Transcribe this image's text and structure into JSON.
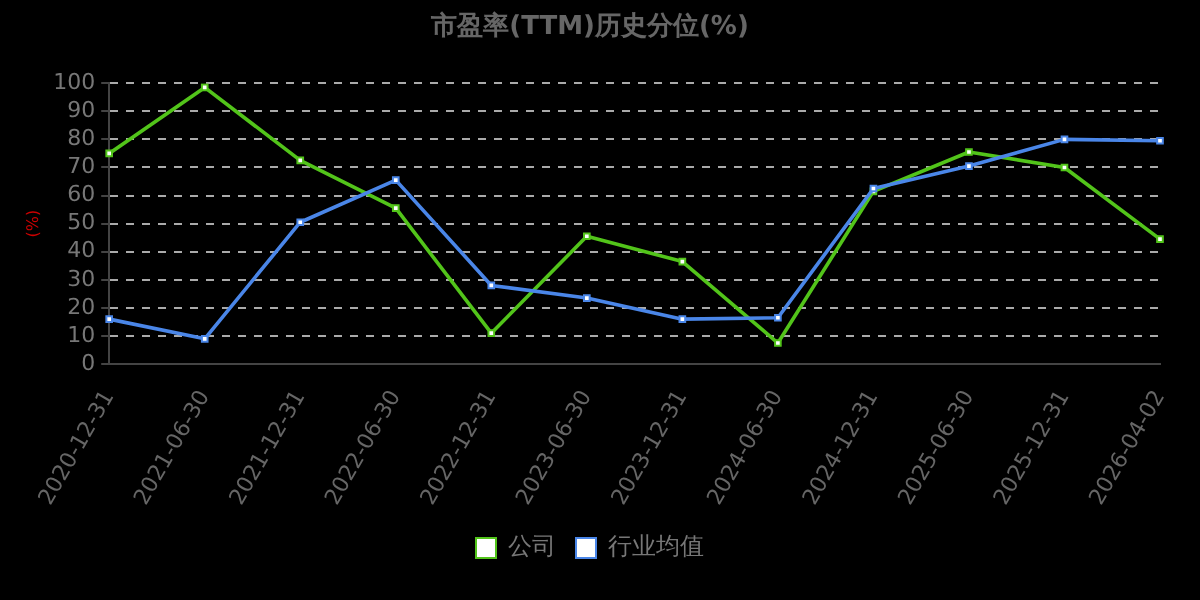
{
  "chart_data": {
    "type": "line",
    "title": "市盈率(TTM)历史分位(%)",
    "ylabel": "(%)",
    "categories": [
      "2020-12-31",
      "2021-06-30",
      "2021-12-31",
      "2022-06-30",
      "2022-12-31",
      "2023-06-30",
      "2023-12-31",
      "2024-06-30",
      "2024-12-31",
      "2025-06-30",
      "2025-12-31",
      "2026-04-02"
    ],
    "series": [
      {
        "name": "公司",
        "color": "#52c41a",
        "values": [
          75,
          98.5,
          72.5,
          55.5,
          11,
          45.5,
          36.5,
          7.5,
          61.5,
          75.5,
          70,
          44.5
        ]
      },
      {
        "name": "行业均值",
        "color": "#4a86e8",
        "values": [
          16,
          9,
          50.5,
          65.5,
          28,
          23.5,
          16,
          16.5,
          62.5,
          70.5,
          80,
          79.5
        ]
      }
    ],
    "ylim": [
      0,
      100
    ],
    "yticks": [
      0,
      10,
      20,
      30,
      40,
      50,
      60,
      70,
      80,
      90,
      100
    ],
    "grid": "y",
    "legend": "bottom",
    "marker": "square",
    "line_style": "solid"
  }
}
